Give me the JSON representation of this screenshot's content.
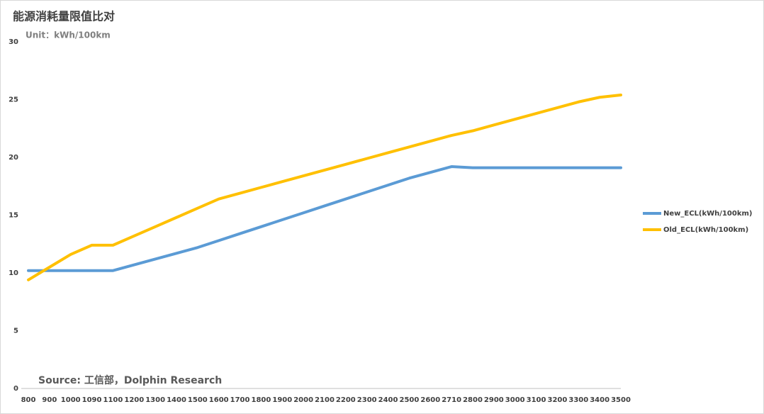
{
  "chart_data": {
    "type": "line",
    "title": "能源消耗量限值比对",
    "subtitle": "Unit：kWh/100km",
    "source": "Source: 工信部，Dolphin Research",
    "categories": [
      "800",
      "900",
      "1000",
      "1090",
      "1100",
      "1200",
      "1300",
      "1400",
      "1500",
      "1600",
      "1700",
      "1800",
      "1900",
      "2000",
      "2100",
      "2200",
      "2300",
      "2400",
      "2500",
      "2600",
      "2710",
      "2800",
      "2900",
      "3000",
      "3100",
      "3200",
      "3300",
      "3400",
      "3500"
    ],
    "series": [
      {
        "name": "New_ECL(kWh/100km)",
        "color": "#5b9bd5",
        "values": [
          10.2,
          10.2,
          10.2,
          10.2,
          10.2,
          10.7,
          11.2,
          11.7,
          12.2,
          12.8,
          13.4,
          14.0,
          14.6,
          15.2,
          15.8,
          16.4,
          17.0,
          17.6,
          18.2,
          18.7,
          19.2,
          19.1,
          19.1,
          19.1,
          19.1,
          19.1,
          19.1,
          19.1,
          19.1
        ]
      },
      {
        "name": "Old_ECL(kWh/100km)",
        "color": "#ffc000",
        "values": [
          9.4,
          10.5,
          11.6,
          12.4,
          12.4,
          13.2,
          14.0,
          14.8,
          15.6,
          16.4,
          16.9,
          17.4,
          17.9,
          18.4,
          18.9,
          19.4,
          19.9,
          20.4,
          20.9,
          21.4,
          21.9,
          22.3,
          22.8,
          23.3,
          23.8,
          24.3,
          24.8,
          25.2,
          25.4
        ]
      }
    ],
    "ylim": [
      0,
      30
    ],
    "yticks": [
      0,
      5,
      10,
      15,
      20,
      25,
      30
    ],
    "grid": false,
    "legend": "right"
  }
}
